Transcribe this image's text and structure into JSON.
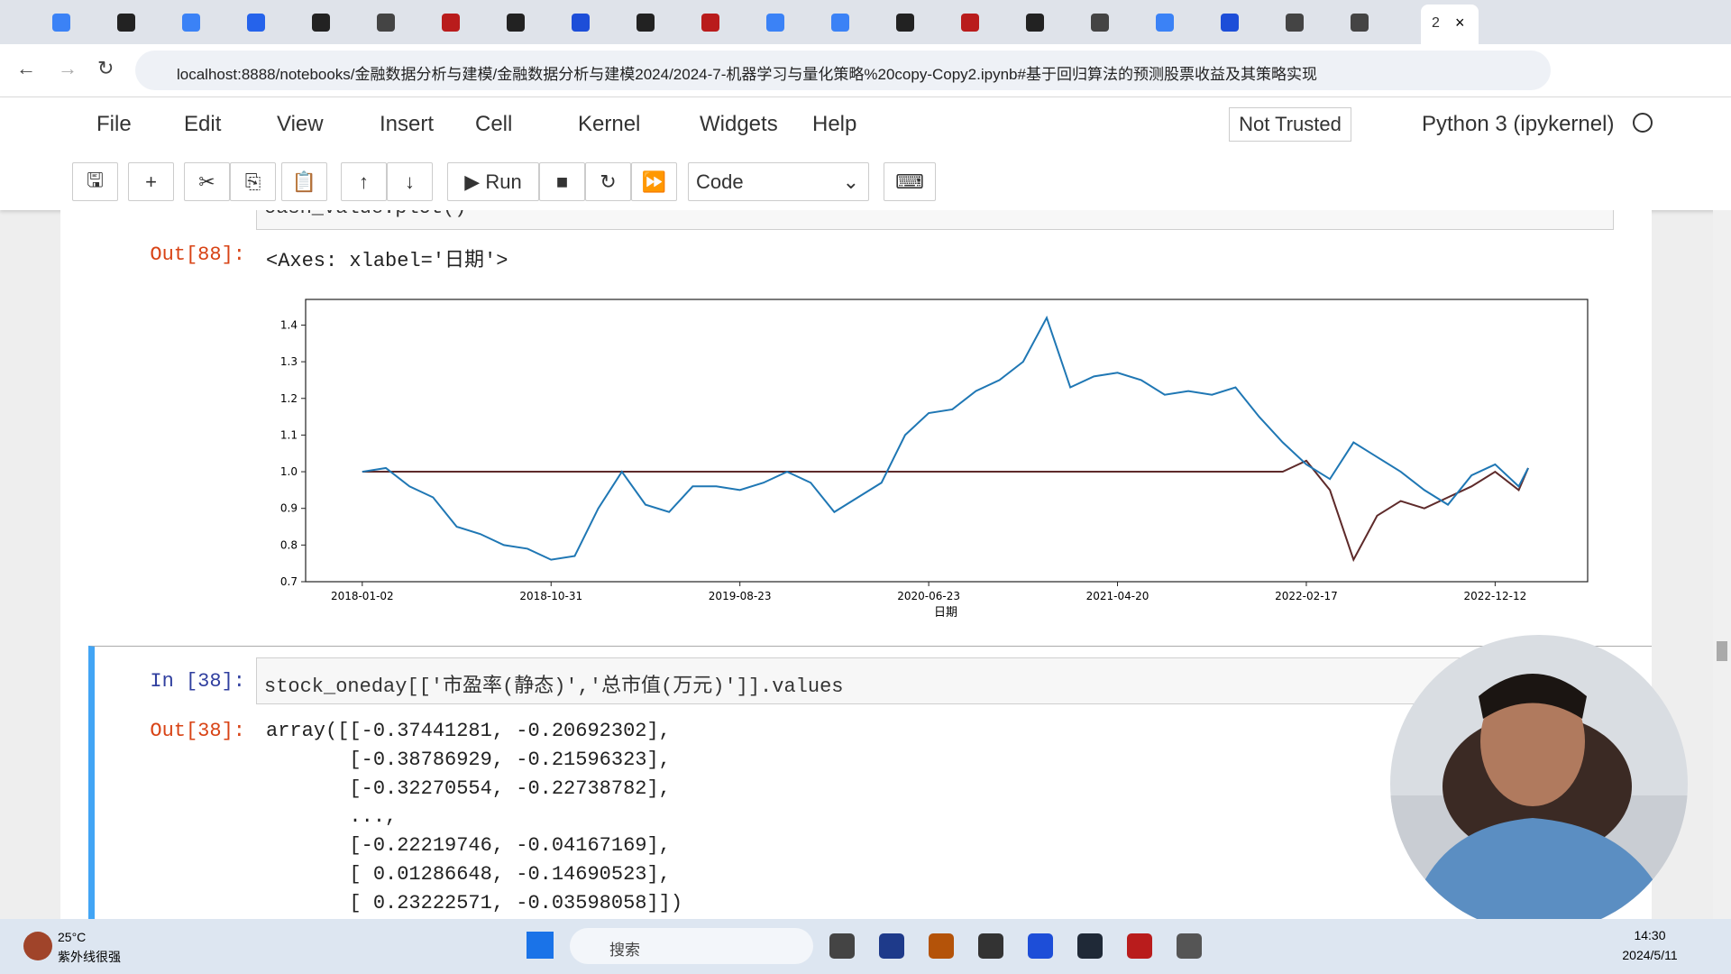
{
  "browser": {
    "active_tab": "2",
    "url": "localhost:8888/notebooks/金融数据分析与建模/金融数据分析与建模2024/2024-7-机器学习与量化策略%20copy-Copy2.ipynb#基于回归算法的预测股票收益及其策略实现"
  },
  "menu": [
    "File",
    "Edit",
    "View",
    "Insert",
    "Cell",
    "Kernel",
    "Widgets",
    "Help"
  ],
  "trusted": "Not Trusted",
  "kernel": "Python 3 (ipykernel)",
  "toolbar": {
    "run": "Run",
    "cell_type": "Code"
  },
  "cells": [
    {
      "code": "cash_value.plot()",
      "out_prompt": "Out[88]:",
      "output_text": "<Axes: xlabel='日期'>"
    },
    {
      "in_prompt": "In [38]:",
      "code": "stock_oneday[['市盈率(静态)','总市值(万元)']].values",
      "out_prompt": "Out[38]:",
      "output_lines": [
        "array([[-0.37441281, -0.20692302],",
        "       [-0.38786929, -0.21596323],",
        "       [-0.32270554, -0.22738782],",
        "       ...,",
        "       [-0.22219746, -0.04167169],",
        "       [ 0.01286648, -0.14690523],",
        "       [ 0.23222571, -0.03598058]])"
      ]
    }
  ],
  "chart_data": {
    "type": "line",
    "xlabel": "日期",
    "x": [
      0,
      25,
      50,
      75,
      100,
      125,
      150,
      175,
      200,
      225,
      250,
      275,
      300,
      325,
      350,
      375,
      400,
      425,
      450,
      475,
      500,
      525,
      550,
      575,
      600,
      625,
      650,
      675,
      700,
      725,
      750,
      775,
      800,
      825,
      850,
      875,
      900,
      925,
      950,
      975,
      1000,
      1025,
      1050,
      1075,
      1100,
      1125,
      1150,
      1175,
      1200,
      1225,
      1235
    ],
    "xlim": [
      -60,
      1298
    ],
    "xticks": [
      {
        "value": 0,
        "label": "2018-01-02"
      },
      {
        "value": 200,
        "label": "2018-10-31"
      },
      {
        "value": 400,
        "label": "2019-08-23"
      },
      {
        "value": 600,
        "label": "2020-06-23"
      },
      {
        "value": 800,
        "label": "2021-04-20"
      },
      {
        "value": 1000,
        "label": "2022-02-17"
      },
      {
        "value": 1200,
        "label": "2022-12-12"
      }
    ],
    "ylim": [
      0.7,
      1.47
    ],
    "yticks": [
      0.7,
      0.8,
      0.9,
      {
        "value": 1,
        "label": "1.0"
      },
      1.1,
      1.2,
      1.3,
      1.4
    ],
    "series": [
      {
        "color": "#1f77b4",
        "values": [
          1.0,
          1.01,
          0.96,
          0.93,
          0.85,
          0.83,
          0.8,
          0.79,
          0.76,
          0.77,
          0.9,
          1.0,
          0.91,
          0.89,
          0.96,
          0.96,
          0.95,
          0.97,
          1.0,
          0.97,
          0.89,
          0.93,
          0.97,
          1.1,
          1.16,
          1.17,
          1.22,
          1.25,
          1.3,
          1.42,
          1.23,
          1.26,
          1.27,
          1.25,
          1.21,
          1.22,
          1.21,
          1.23,
          1.15,
          1.08,
          1.02,
          0.98,
          1.08,
          1.04,
          1.0,
          0.95,
          0.91,
          0.99,
          1.02,
          0.96,
          1.01
        ]
      },
      {
        "color": "#5e2a2a",
        "values": [
          1.0,
          1.0,
          1.0,
          1.0,
          1.0,
          1.0,
          1.0,
          1.0,
          1.0,
          1.0,
          1.0,
          1.0,
          1.0,
          1.0,
          1.0,
          1.0,
          1.0,
          1.0,
          1.0,
          1.0,
          1.0,
          1.0,
          1.0,
          1.0,
          1.0,
          1.0,
          1.0,
          1.0,
          1.0,
          1.0,
          1.0,
          1.0,
          1.0,
          1.0,
          1.0,
          1.0,
          1.0,
          1.0,
          1.0,
          1.0,
          1.03,
          0.95,
          0.76,
          0.88,
          0.92,
          0.9,
          0.93,
          0.96,
          1.0,
          0.95,
          1.01
        ]
      }
    ]
  },
  "taskbar": {
    "temperature": "25°C",
    "weather": "紫外线很强",
    "search": "搜索",
    "time": "14:30",
    "date": "2024/5/11"
  }
}
